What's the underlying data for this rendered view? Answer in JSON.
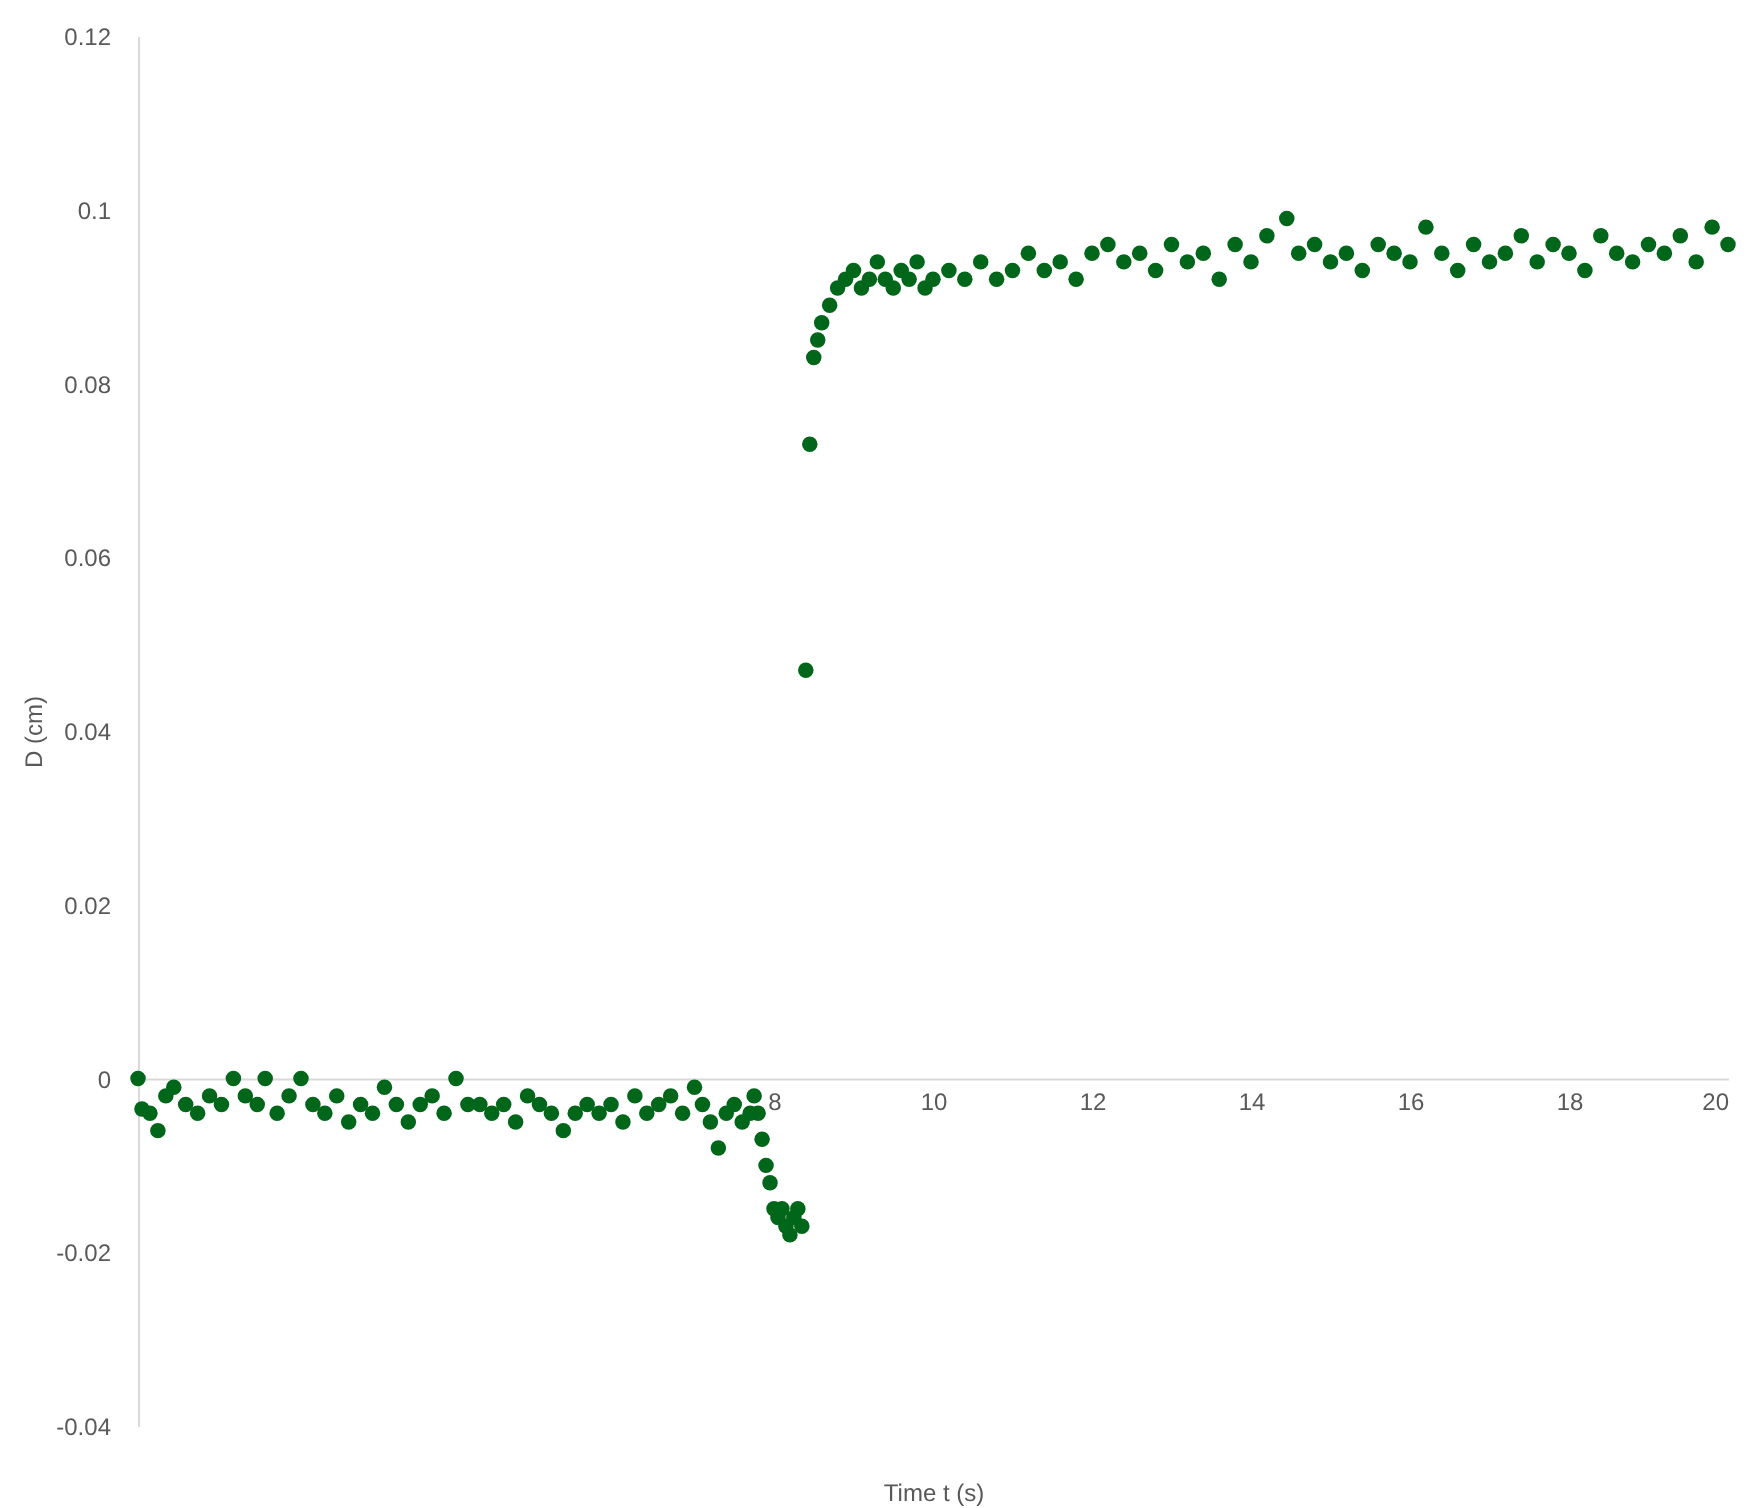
{
  "chart_data": {
    "type": "scatter",
    "xlabel": "Time t (s)",
    "ylabel": "D (cm)",
    "xlim": [
      0,
      20
    ],
    "xticks": [
      8,
      10,
      12,
      14,
      16,
      18,
      20
    ],
    "ylim": [
      -0.04,
      0.12
    ],
    "yticks": [
      -0.04,
      -0.02,
      0,
      0.02,
      0.04,
      0.06,
      0.08,
      0.1,
      0.12
    ],
    "grid": false,
    "legend": false,
    "marker": "circle",
    "series": [
      {
        "color": "#006619",
        "x": [
          0,
          0.05,
          0.15,
          0.25,
          0.35,
          0.45,
          0.6,
          0.75,
          0.9,
          1.05,
          1.2,
          1.35,
          1.5,
          1.6,
          1.75,
          1.9,
          2.05,
          2.2,
          2.35,
          2.5,
          2.65,
          2.8,
          2.95,
          3.1,
          3.25,
          3.4,
          3.55,
          3.7,
          3.85,
          4.0,
          4.15,
          4.3,
          4.45,
          4.6,
          4.75,
          4.9,
          5.05,
          5.2,
          5.35,
          5.5,
          5.65,
          5.8,
          5.95,
          6.1,
          6.25,
          6.4,
          6.55,
          6.7,
          6.85,
          7.0,
          7.1,
          7.2,
          7.3,
          7.4,
          7.5,
          7.6,
          7.7,
          7.75,
          7.8,
          7.85,
          7.9,
          7.95,
          8.0,
          8.05,
          8.1,
          8.15,
          8.2,
          8.25,
          8.3,
          8.35,
          8.4,
          8.45,
          8.5,
          8.55,
          8.6,
          8.7,
          8.8,
          8.9,
          9.0,
          9.1,
          9.2,
          9.3,
          9.4,
          9.5,
          9.6,
          9.7,
          9.8,
          9.9,
          10.0,
          10.2,
          10.4,
          10.6,
          10.8,
          11.0,
          11.2,
          11.4,
          11.6,
          11.8,
          12.0,
          12.2,
          12.4,
          12.6,
          12.8,
          13.0,
          13.2,
          13.4,
          13.6,
          13.8,
          14.0,
          14.2,
          14.45,
          14.6,
          14.8,
          15.0,
          15.2,
          15.4,
          15.6,
          15.8,
          16.0,
          16.2,
          16.4,
          16.6,
          16.8,
          17.0,
          17.2,
          17.4,
          17.6,
          17.8,
          18.0,
          18.2,
          18.4,
          18.6,
          18.8,
          19.0,
          19.2,
          19.4,
          19.6,
          19.8,
          20.0
        ],
        "values": [
          0,
          -0.0035,
          -0.004,
          -0.006,
          -0.002,
          -0.001,
          -0.003,
          -0.004,
          -0.002,
          -0.003,
          0,
          -0.002,
          -0.003,
          0,
          -0.004,
          -0.002,
          0,
          -0.003,
          -0.004,
          -0.002,
          -0.005,
          -0.003,
          -0.004,
          -0.001,
          -0.003,
          -0.005,
          -0.003,
          -0.002,
          -0.004,
          0,
          -0.003,
          -0.003,
          -0.004,
          -0.003,
          -0.005,
          -0.002,
          -0.003,
          -0.004,
          -0.006,
          -0.004,
          -0.003,
          -0.004,
          -0.003,
          -0.005,
          -0.002,
          -0.004,
          -0.003,
          -0.002,
          -0.004,
          -0.001,
          -0.003,
          -0.005,
          -0.008,
          -0.004,
          -0.003,
          -0.005,
          -0.004,
          -0.002,
          -0.004,
          -0.007,
          -0.01,
          -0.012,
          -0.015,
          -0.016,
          -0.015,
          -0.017,
          -0.018,
          -0.016,
          -0.015,
          -0.017,
          0.047,
          0.073,
          0.083,
          0.085,
          0.087,
          0.089,
          0.091,
          0.092,
          0.093,
          0.091,
          0.092,
          0.094,
          0.092,
          0.091,
          0.093,
          0.092,
          0.094,
          0.091,
          0.092,
          0.093,
          0.092,
          0.094,
          0.092,
          0.093,
          0.095,
          0.093,
          0.094,
          0.092,
          0.095,
          0.096,
          0.094,
          0.095,
          0.093,
          0.096,
          0.094,
          0.095,
          0.092,
          0.096,
          0.094,
          0.097,
          0.099,
          0.095,
          0.096,
          0.094,
          0.095,
          0.093,
          0.096,
          0.095,
          0.094,
          0.098,
          0.095,
          0.093,
          0.096,
          0.094,
          0.095,
          0.097,
          0.094,
          0.096,
          0.095,
          0.093,
          0.097,
          0.095,
          0.094,
          0.096,
          0.095,
          0.097,
          0.094,
          0.098,
          0.096
        ]
      }
    ]
  }
}
